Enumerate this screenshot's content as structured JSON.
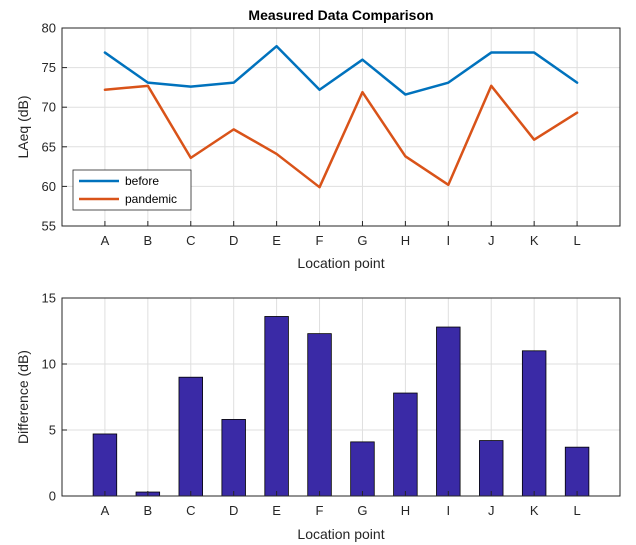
{
  "colors": {
    "before": "#0072BD",
    "pandemic": "#D95319",
    "difference": "#3A2AA6",
    "grid": "#DFDFDF",
    "axis": "#262626"
  },
  "chart_data": [
    {
      "type": "line",
      "title": "Measured Data Comparison",
      "xlabel": "Location point",
      "ylabel": "LAeq (dB)",
      "categories": [
        "A",
        "B",
        "C",
        "D",
        "E",
        "F",
        "G",
        "H",
        "I",
        "J",
        "K",
        "L"
      ],
      "ylim": [
        55,
        80
      ],
      "yticks": [
        55,
        60,
        65,
        70,
        75,
        80
      ],
      "grid": true,
      "legend_position": "bottom-left",
      "series": [
        {
          "name": "before",
          "values": [
            76.9,
            73.1,
            72.6,
            73.1,
            77.7,
            72.2,
            76.0,
            71.6,
            73.1,
            76.9,
            76.9,
            73.1
          ]
        },
        {
          "name": "pandemic",
          "values": [
            72.2,
            72.7,
            63.6,
            67.2,
            64.1,
            59.9,
            71.9,
            63.8,
            60.2,
            72.7,
            65.9,
            69.3
          ]
        }
      ]
    },
    {
      "type": "bar",
      "title": "",
      "xlabel": "Location point",
      "ylabel": "Difference (dB)",
      "categories": [
        "A",
        "B",
        "C",
        "D",
        "E",
        "F",
        "G",
        "H",
        "I",
        "J",
        "K",
        "L"
      ],
      "values": [
        4.7,
        0.3,
        9.0,
        5.8,
        13.6,
        12.3,
        4.1,
        7.8,
        12.8,
        4.2,
        11.0,
        3.7
      ],
      "ylim": [
        0,
        15
      ],
      "yticks": [
        0,
        5,
        10,
        15
      ],
      "grid": true
    }
  ]
}
